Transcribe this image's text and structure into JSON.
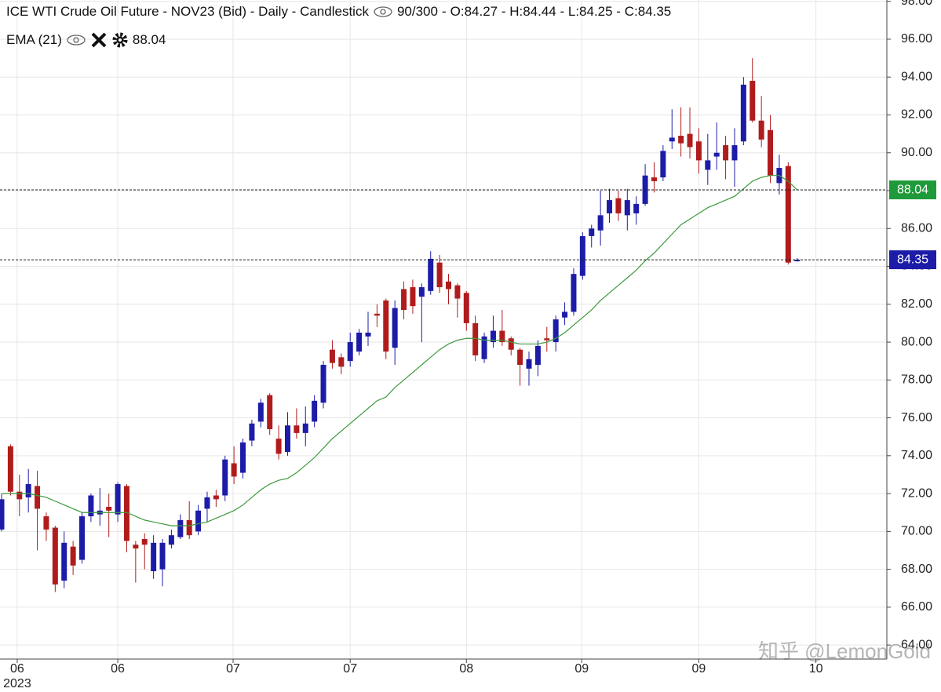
{
  "chart_data": {
    "type": "candlestick",
    "title": "ICE WTI Crude Oil Future - NOV23 (Bid) - Daily - Candlestick",
    "bar_count": "90/300",
    "ohlc_label": "O:84.27 - H:84.44 - L:84.25 - C:84.35",
    "up_color": "#1c1ca8",
    "down_color": "#b01c1c",
    "open": [
      70.1,
      74.5,
      72.1,
      71.8,
      72.4,
      70.8,
      70.2,
      67.4,
      69.2,
      68.5,
      70.8,
      70.9,
      71.3,
      70.9,
      72.4,
      69.3,
      69.6,
      67.9,
      68.0,
      69.3,
      69.7,
      70.6,
      70.0,
      71.2,
      71.9,
      71.9,
      73.6,
      73.1,
      74.8,
      75.8,
      77.2,
      74.9,
      74.2,
      75.6,
      75.2,
      75.8,
      76.8,
      79.6,
      79.2,
      79.0,
      79.5,
      80.3,
      81.5,
      82.2,
      79.7,
      82.8,
      82.9,
      82.4,
      82.7,
      84.2,
      83.2,
      83.0,
      82.6,
      81.0,
      79.1,
      80.0,
      80.6,
      80.2,
      79.6,
      78.6,
      78.8,
      80.2,
      80.0,
      81.3,
      81.6,
      83.5,
      85.6,
      85.9,
      86.8,
      87.6,
      86.7,
      86.8,
      87.3,
      88.7,
      88.7,
      90.6,
      90.9,
      91.0,
      90.6,
      89.1,
      89.8,
      90.4,
      89.6,
      90.6,
      93.8,
      91.7,
      91.2,
      88.4,
      89.3,
      84.27
    ],
    "high": [
      72.0,
      74.6,
      73.0,
      73.3,
      73.2,
      71.0,
      70.3,
      70.0,
      69.5,
      71.0,
      72.0,
      72.3,
      72.0,
      72.6,
      72.5,
      69.5,
      69.9,
      69.8,
      69.6,
      70.1,
      70.9,
      71.6,
      71.4,
      72.1,
      72.2,
      74.0,
      74.5,
      74.9,
      75.9,
      77.0,
      77.3,
      75.6,
      76.3,
      76.5,
      76.6,
      77.2,
      79.0,
      80.1,
      79.4,
      80.5,
      80.7,
      81.6,
      82.0,
      82.3,
      82.2,
      83.2,
      83.3,
      83.1,
      84.8,
      84.6,
      83.6,
      83.1,
      82.7,
      81.4,
      80.5,
      81.4,
      81.7,
      80.3,
      79.7,
      79.5,
      80.1,
      80.8,
      81.4,
      82.1,
      83.9,
      85.8,
      86.2,
      88.0,
      88.1,
      88.0,
      88.1,
      87.7,
      89.4,
      89.5,
      90.4,
      92.3,
      92.4,
      92.4,
      91.3,
      91.0,
      91.6,
      90.9,
      91.3,
      94.0,
      95.0,
      93.0,
      92.0,
      89.9,
      89.5,
      84.44
    ],
    "low": [
      70.0,
      71.9,
      70.8,
      71.0,
      69.0,
      69.5,
      66.8,
      67.0,
      67.7,
      68.3,
      70.5,
      70.3,
      69.7,
      70.5,
      68.9,
      67.3,
      68.0,
      67.5,
      67.1,
      69.1,
      69.6,
      69.6,
      69.8,
      70.5,
      71.3,
      71.6,
      72.5,
      72.8,
      74.5,
      75.5,
      75.1,
      73.8,
      74.0,
      74.9,
      74.5,
      75.5,
      76.5,
      78.6,
      78.3,
      78.7,
      79.3,
      79.8,
      80.8,
      79.1,
      78.8,
      81.2,
      81.5,
      80.0,
      82.5,
      82.6,
      82.0,
      81.3,
      80.6,
      79.0,
      78.9,
      79.7,
      79.8,
      79.3,
      77.7,
      77.7,
      78.2,
      79.5,
      79.5,
      80.9,
      81.4,
      83.3,
      85.0,
      85.1,
      86.3,
      86.4,
      85.9,
      86.2,
      87.2,
      87.9,
      88.5,
      90.2,
      89.8,
      89.7,
      88.9,
      88.3,
      89.1,
      88.6,
      88.2,
      90.4,
      91.6,
      90.3,
      88.4,
      87.8,
      84.1,
      84.25
    ],
    "close": [
      71.7,
      72.1,
      71.7,
      72.5,
      71.2,
      70.1,
      67.2,
      69.4,
      68.2,
      70.8,
      71.9,
      71.1,
      71.1,
      72.5,
      69.5,
      69.1,
      69.3,
      69.4,
      69.4,
      69.8,
      70.6,
      69.8,
      71.1,
      71.8,
      71.7,
      73.8,
      72.9,
      74.7,
      75.7,
      76.8,
      75.4,
      74.1,
      75.6,
      75.2,
      75.7,
      76.9,
      78.8,
      78.9,
      78.7,
      80.0,
      80.5,
      80.5,
      81.4,
      79.5,
      81.8,
      81.7,
      81.9,
      82.9,
      84.4,
      82.9,
      82.8,
      82.3,
      81.0,
      79.3,
      80.3,
      80.6,
      80.0,
      79.6,
      78.8,
      79.1,
      79.8,
      80.1,
      81.2,
      81.6,
      83.6,
      85.6,
      86.0,
      86.7,
      87.5,
      86.8,
      87.5,
      87.3,
      88.8,
      88.5,
      90.1,
      90.8,
      90.5,
      90.3,
      89.6,
      89.6,
      90.0,
      89.6,
      90.4,
      93.6,
      91.7,
      90.7,
      88.8,
      89.2,
      84.2,
      84.35
    ],
    "ema": {
      "name": "EMA (21)",
      "color": "#3c9a3c",
      "marker_color": "#1f9a3a",
      "values": [
        72.0,
        72.0,
        72.0,
        72.0,
        71.9,
        71.8,
        71.6,
        71.4,
        71.2,
        71.0,
        71.0,
        71.0,
        71.0,
        71.0,
        71.0,
        70.8,
        70.6,
        70.5,
        70.4,
        70.3,
        70.3,
        70.3,
        70.4,
        70.5,
        70.7,
        70.9,
        71.1,
        71.4,
        71.8,
        72.2,
        72.5,
        72.7,
        72.8,
        73.1,
        73.5,
        73.9,
        74.4,
        74.9,
        75.3,
        75.7,
        76.1,
        76.5,
        76.9,
        77.1,
        77.6,
        78.0,
        78.4,
        78.8,
        79.2,
        79.6,
        79.9,
        80.1,
        80.2,
        80.2,
        80.1,
        80.1,
        80.1,
        80.0,
        79.9,
        79.9,
        79.9,
        80.0,
        80.2,
        80.5,
        80.9,
        81.3,
        81.7,
        82.2,
        82.6,
        83.0,
        83.4,
        83.8,
        84.3,
        84.7,
        85.2,
        85.7,
        86.2,
        86.5,
        86.8,
        87.1,
        87.3,
        87.5,
        87.7,
        88.1,
        88.5,
        88.7,
        88.8,
        88.8,
        88.5,
        88.04
      ]
    },
    "ylim": [
      63.26,
      98.07
    ],
    "yticks": [
      {
        "value": 64,
        "label": "64.00"
      },
      {
        "value": 66,
        "label": "66.00"
      },
      {
        "value": 68,
        "label": "68.00"
      },
      {
        "value": 70,
        "label": "70.00"
      },
      {
        "value": 72,
        "label": "72.00"
      },
      {
        "value": 74,
        "label": "74.00"
      },
      {
        "value": 76,
        "label": "76.00"
      },
      {
        "value": 78,
        "label": "78.00"
      },
      {
        "value": 80,
        "label": "80.00"
      },
      {
        "value": 82,
        "label": "82.00"
      },
      {
        "value": 84,
        "label": "84.00"
      },
      {
        "value": 86,
        "label": "86.00"
      },
      {
        "value": 88,
        "label": "88.00"
      },
      {
        "value": 90,
        "label": "90.00"
      },
      {
        "value": 92,
        "label": "92.00"
      },
      {
        "value": 94,
        "label": "94.00"
      },
      {
        "value": 96,
        "label": "96.00"
      },
      {
        "value": 98,
        "label": "98.00"
      }
    ],
    "xticks": [
      {
        "value": 1.75,
        "label": "06"
      },
      {
        "value": 13,
        "label": "06"
      },
      {
        "value": 25.9,
        "label": "07"
      },
      {
        "value": 39,
        "label": "07"
      },
      {
        "value": 52,
        "label": "08"
      },
      {
        "value": 64.9,
        "label": "09"
      },
      {
        "value": 78,
        "label": "09"
      },
      {
        "value": 91.1,
        "label": "10"
      }
    ],
    "x_sublabel": "2023",
    "grid": true,
    "watermark": "知乎 @LemonGold"
  }
}
